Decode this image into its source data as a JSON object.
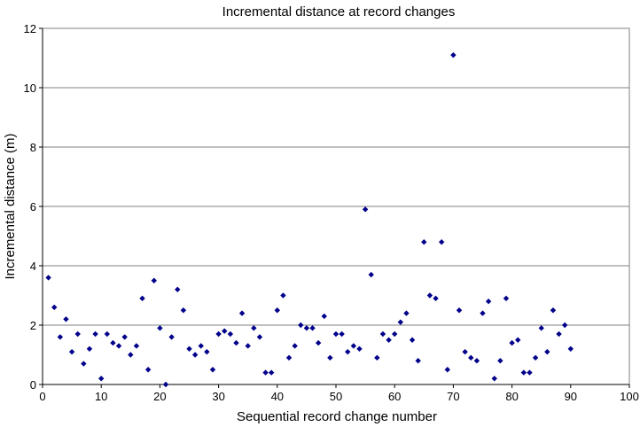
{
  "chart_data": {
    "type": "scatter",
    "title": "Incremental distance at record changes",
    "xlabel": "Sequential record change number",
    "ylabel": "Incremental distance (m)",
    "xlim": [
      0,
      100
    ],
    "ylim": [
      0,
      12
    ],
    "x_ticks": [
      "0",
      "10",
      "20",
      "30",
      "40",
      "50",
      "60",
      "70",
      "80",
      "90",
      "100"
    ],
    "y_ticks": [
      "0",
      "2",
      "4",
      "6",
      "8",
      "10",
      "12"
    ],
    "grid": "horizontal",
    "legend": "none",
    "marker": "diamond",
    "colors": {
      "marker": "#00008B",
      "grid": "#808080",
      "axis": "#000000"
    },
    "series": [
      {
        "points": [
          [
            1,
            3.6
          ],
          [
            2,
            2.6
          ],
          [
            3,
            1.6
          ],
          [
            4,
            2.2
          ],
          [
            5,
            1.1
          ],
          [
            6,
            1.7
          ],
          [
            7,
            0.7
          ],
          [
            8,
            1.2
          ],
          [
            9,
            1.7
          ],
          [
            10,
            0.2
          ],
          [
            11,
            1.7
          ],
          [
            12,
            1.4
          ],
          [
            13,
            1.3
          ],
          [
            14,
            1.6
          ],
          [
            15,
            1.0
          ],
          [
            16,
            1.3
          ],
          [
            17,
            2.9
          ],
          [
            18,
            0.5
          ],
          [
            19,
            3.5
          ],
          [
            20,
            1.9
          ],
          [
            21,
            0.0
          ],
          [
            22,
            1.6
          ],
          [
            23,
            3.2
          ],
          [
            24,
            2.5
          ],
          [
            25,
            1.2
          ],
          [
            26,
            1.0
          ],
          [
            27,
            1.3
          ],
          [
            28,
            1.1
          ],
          [
            29,
            0.5
          ],
          [
            30,
            1.7
          ],
          [
            31,
            1.8
          ],
          [
            32,
            1.7
          ],
          [
            33,
            1.4
          ],
          [
            34,
            2.4
          ],
          [
            35,
            1.3
          ],
          [
            36,
            1.9
          ],
          [
            37,
            1.6
          ],
          [
            38,
            0.4
          ],
          [
            39,
            0.4
          ],
          [
            40,
            2.5
          ],
          [
            41,
            3.0
          ],
          [
            42,
            0.9
          ],
          [
            43,
            1.3
          ],
          [
            44,
            2.0
          ],
          [
            45,
            1.9
          ],
          [
            46,
            1.9
          ],
          [
            47,
            1.4
          ],
          [
            48,
            2.3
          ],
          [
            49,
            0.9
          ],
          [
            50,
            1.7
          ],
          [
            51,
            1.7
          ],
          [
            52,
            1.1
          ],
          [
            53,
            1.3
          ],
          [
            54,
            1.2
          ],
          [
            55,
            5.9
          ],
          [
            56,
            3.7
          ],
          [
            57,
            0.9
          ],
          [
            58,
            1.7
          ],
          [
            59,
            1.5
          ],
          [
            60,
            1.7
          ],
          [
            61,
            2.1
          ],
          [
            62,
            2.4
          ],
          [
            63,
            1.5
          ],
          [
            64,
            0.8
          ],
          [
            65,
            4.8
          ],
          [
            66,
            3.0
          ],
          [
            67,
            2.9
          ],
          [
            68,
            4.8
          ],
          [
            69,
            0.5
          ],
          [
            70,
            11.1
          ],
          [
            71,
            2.5
          ],
          [
            72,
            1.1
          ],
          [
            73,
            0.9
          ],
          [
            74,
            0.8
          ],
          [
            75,
            2.4
          ],
          [
            76,
            2.8
          ],
          [
            77,
            0.2
          ],
          [
            78,
            0.8
          ],
          [
            79,
            2.9
          ],
          [
            80,
            1.4
          ],
          [
            81,
            1.5
          ],
          [
            82,
            0.4
          ],
          [
            83,
            0.4
          ],
          [
            84,
            0.9
          ],
          [
            85,
            1.9
          ],
          [
            86,
            1.1
          ],
          [
            87,
            2.5
          ],
          [
            88,
            1.7
          ],
          [
            89,
            2.0
          ],
          [
            90,
            1.2
          ]
        ]
      }
    ]
  }
}
